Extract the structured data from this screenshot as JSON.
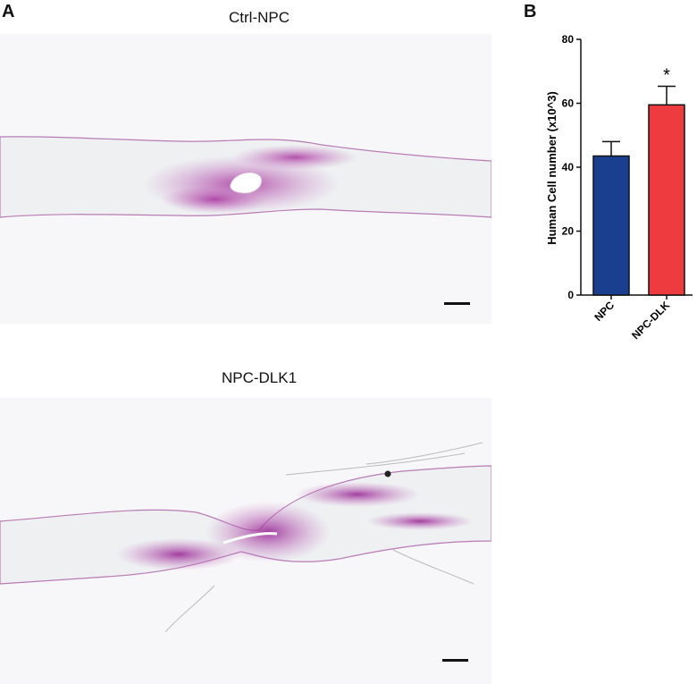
{
  "panels": {
    "a": {
      "letter": "A"
    },
    "b": {
      "letter": "B"
    }
  },
  "images": {
    "top": {
      "title": "Ctrl-NPC"
    },
    "bottom": {
      "title": "NPC-DLK1"
    }
  },
  "chart_data": {
    "type": "bar",
    "categories": [
      "NPC",
      "NPC-DLK"
    ],
    "values": [
      43.5,
      59.5
    ],
    "errors": [
      4.5,
      5.8
    ],
    "significance": [
      "",
      "*"
    ],
    "colors": [
      "#1a3f8f",
      "#ee3b3f"
    ],
    "ylabel": "Human Cell number (x10^3)",
    "xlabel": "",
    "ylim": [
      0,
      80
    ],
    "yticks": [
      0,
      20,
      40,
      60,
      80
    ],
    "grid": false
  }
}
